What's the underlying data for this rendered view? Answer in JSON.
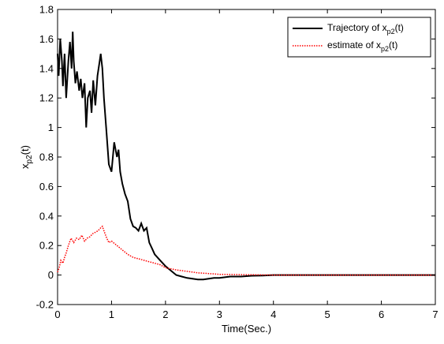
{
  "chart_data": {
    "type": "line",
    "xlabel": "Time(Sec.)",
    "ylabel": {
      "main": "x",
      "sub": "p2",
      "suffix": "(t)"
    },
    "xlim": [
      0,
      7
    ],
    "ylim": [
      -0.2,
      1.8
    ],
    "xticks": [
      "0",
      "1",
      "2",
      "3",
      "4",
      "5",
      "6",
      "7"
    ],
    "yticks": [
      "-0.2",
      "0",
      "0.2",
      "0.4",
      "0.6",
      "0.8",
      "1",
      "1.2",
      "1.4",
      "1.6",
      "1.8"
    ],
    "grid": false,
    "legend_position": "top-right",
    "series": [
      {
        "name": {
          "main": "Trajectory of x",
          "sub": "p2",
          "suffix": "(t)"
        },
        "color": "#000000",
        "style": "solid",
        "x": [
          0,
          0.02,
          0.05,
          0.08,
          0.1,
          0.13,
          0.16,
          0.2,
          0.23,
          0.26,
          0.28,
          0.3,
          0.33,
          0.36,
          0.4,
          0.43,
          0.46,
          0.5,
          0.53,
          0.56,
          0.6,
          0.63,
          0.66,
          0.7,
          0.74,
          0.78,
          0.8,
          0.83,
          0.86,
          0.9,
          0.95,
          1.0,
          1.05,
          1.1,
          1.13,
          1.16,
          1.2,
          1.25,
          1.3,
          1.35,
          1.4,
          1.45,
          1.5,
          1.55,
          1.6,
          1.65,
          1.7,
          1.75,
          1.8,
          1.9,
          2.0,
          2.1,
          2.2,
          2.3,
          2.4,
          2.5,
          2.6,
          2.7,
          2.8,
          2.9,
          3.0,
          3.1,
          3.2,
          3.4,
          3.6,
          3.8,
          4.0,
          4.5,
          5.0,
          6.0,
          7.0
        ],
        "y": [
          1.5,
          1.35,
          1.6,
          1.45,
          1.28,
          1.5,
          1.2,
          1.45,
          1.58,
          1.4,
          1.65,
          1.45,
          1.3,
          1.38,
          1.25,
          1.33,
          1.2,
          1.3,
          1.0,
          1.2,
          1.25,
          1.1,
          1.32,
          1.15,
          1.35,
          1.45,
          1.5,
          1.4,
          1.2,
          1.0,
          0.75,
          0.7,
          0.9,
          0.8,
          0.85,
          0.7,
          0.62,
          0.55,
          0.5,
          0.38,
          0.33,
          0.32,
          0.3,
          0.35,
          0.3,
          0.32,
          0.22,
          0.18,
          0.14,
          0.1,
          0.06,
          0.03,
          0.0,
          -0.01,
          -0.02,
          -0.025,
          -0.03,
          -0.03,
          -0.025,
          -0.02,
          -0.02,
          -0.015,
          -0.01,
          -0.01,
          -0.005,
          -0.003,
          0.0,
          0.0,
          0.0,
          0.0,
          0.0
        ]
      },
      {
        "name": {
          "main": "estimate of x",
          "sub": "p2",
          "suffix": "(t)"
        },
        "color": "#ff0000",
        "style": "dotted",
        "x": [
          0,
          0.03,
          0.06,
          0.1,
          0.13,
          0.16,
          0.2,
          0.25,
          0.3,
          0.35,
          0.4,
          0.45,
          0.5,
          0.55,
          0.6,
          0.65,
          0.7,
          0.75,
          0.8,
          0.83,
          0.86,
          0.9,
          0.95,
          1.0,
          1.1,
          1.2,
          1.3,
          1.4,
          1.5,
          1.6,
          1.7,
          1.8,
          1.9,
          2.0,
          2.2,
          2.4,
          2.6,
          2.8,
          3.0,
          3.5,
          4.0,
          5.0,
          6.0,
          7.0
        ],
        "y": [
          0.02,
          0.05,
          0.1,
          0.08,
          0.12,
          0.15,
          0.2,
          0.25,
          0.22,
          0.25,
          0.24,
          0.27,
          0.23,
          0.25,
          0.26,
          0.28,
          0.29,
          0.3,
          0.32,
          0.33,
          0.3,
          0.26,
          0.22,
          0.23,
          0.2,
          0.17,
          0.14,
          0.12,
          0.11,
          0.1,
          0.09,
          0.08,
          0.07,
          0.05,
          0.035,
          0.025,
          0.015,
          0.01,
          0.005,
          0.002,
          0.0,
          0.0,
          0.0,
          0.0
        ]
      }
    ]
  }
}
